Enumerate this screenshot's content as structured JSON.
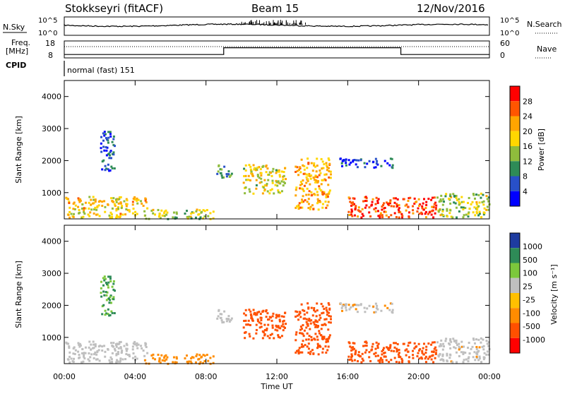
{
  "header": {
    "station": "Stokkseyri (fitACF)",
    "beam": "Beam 15",
    "date": "12/Nov/2016"
  },
  "noise_panel": {
    "left_label": "N.Sky",
    "right_label": "N.Search",
    "left_ticks": [
      "10^5",
      "10^0"
    ],
    "right_ticks": [
      "10^5",
      "10^0"
    ]
  },
  "freq_panel": {
    "left_label_1": "Freq.",
    "left_label_2": "[MHz]",
    "right_label": "Nave",
    "left_ticks": [
      "18",
      "8"
    ],
    "right_ticks": [
      "60",
      "0"
    ]
  },
  "cpid_panel": {
    "label": "CPID",
    "mode": "normal (fast) 151"
  },
  "power_panel": {
    "ylabel": "Slant Range [km]",
    "yticks": [
      "4000",
      "3000",
      "2000",
      "1000"
    ],
    "colorbar_label": "Power [dB]",
    "colorbar_ticks": [
      "28",
      "24",
      "20",
      "16",
      "12",
      "8",
      "4"
    ],
    "colors": [
      "#0000ff",
      "#2850c8",
      "#2e8b57",
      "#8fbc3c",
      "#ffd700",
      "#ffa500",
      "#ff5500",
      "#ff0000"
    ]
  },
  "velocity_panel": {
    "ylabel": "Slant Range [km]",
    "yticks": [
      "4000",
      "3000",
      "2000",
      "1000"
    ],
    "colorbar_label": "Velocity [m s⁻¹]",
    "colorbar_ticks": [
      "1000",
      "500",
      "100",
      "25",
      "-25",
      "-100",
      "-500",
      "-1000"
    ],
    "colors": [
      "#1e3ca0",
      "#2e8b57",
      "#7cc83c",
      "#bfbfbf",
      "#ffc000",
      "#ff8c00",
      "#ff5000",
      "#ff0000"
    ]
  },
  "xaxis": {
    "label": "Time UT",
    "ticks": [
      "00:00",
      "04:00",
      "08:00",
      "12:00",
      "16:00",
      "20:00",
      "00:00"
    ]
  },
  "chart_data": {
    "type": "heatmap",
    "title": "Stokkseyri (fitACF)",
    "x_range_hours": [
      0,
      24
    ],
    "y_range_km": [
      180,
      4500
    ],
    "xlabel": "Time UT",
    "ylabel": "Slant Range [km]",
    "power_range_db": [
      0,
      30
    ],
    "velocity_range_ms": [
      -1000,
      1000
    ],
    "frequency_mhz": {
      "ylim": [
        8,
        18
      ],
      "segments": [
        {
          "start_h": 0,
          "end_h": 9,
          "freq": 10
        },
        {
          "start_h": 9,
          "end_h": 19,
          "freq": 14
        },
        {
          "start_h": 19,
          "end_h": 24,
          "freq": 10
        }
      ]
    },
    "nave": {
      "ylim": [
        0,
        60
      ],
      "approx_value": 40
    },
    "scatter_regions": [
      {
        "t0": 0.0,
        "t1": 4.7,
        "r0": 250,
        "r1": 900,
        "power": 18,
        "vel": 10
      },
      {
        "t0": 2.0,
        "t1": 2.8,
        "r0": 1700,
        "r1": 3000,
        "power": 6,
        "vel": 500
      },
      {
        "t0": 4.5,
        "t1": 8.5,
        "r0": 200,
        "r1": 500,
        "power": 14,
        "vel": -60
      },
      {
        "t0": 8.5,
        "t1": 9.5,
        "r0": 1500,
        "r1": 1900,
        "power": 10,
        "vel": 30
      },
      {
        "t0": 10.0,
        "t1": 12.5,
        "r0": 1000,
        "r1": 1900,
        "power": 16,
        "vel": -200
      },
      {
        "t0": 13.0,
        "t1": 15.0,
        "r0": 500,
        "r1": 2100,
        "power": 20,
        "vel": -300
      },
      {
        "t0": 15.5,
        "t1": 18.5,
        "r0": 1800,
        "r1": 2100,
        "power": 5,
        "vel": -10
      },
      {
        "t0": 16.0,
        "t1": 21.0,
        "r0": 250,
        "r1": 900,
        "power": 26,
        "vel": -200
      },
      {
        "t0": 21.0,
        "t1": 24.0,
        "r0": 250,
        "r1": 1000,
        "power": 14,
        "vel": 0
      }
    ]
  }
}
